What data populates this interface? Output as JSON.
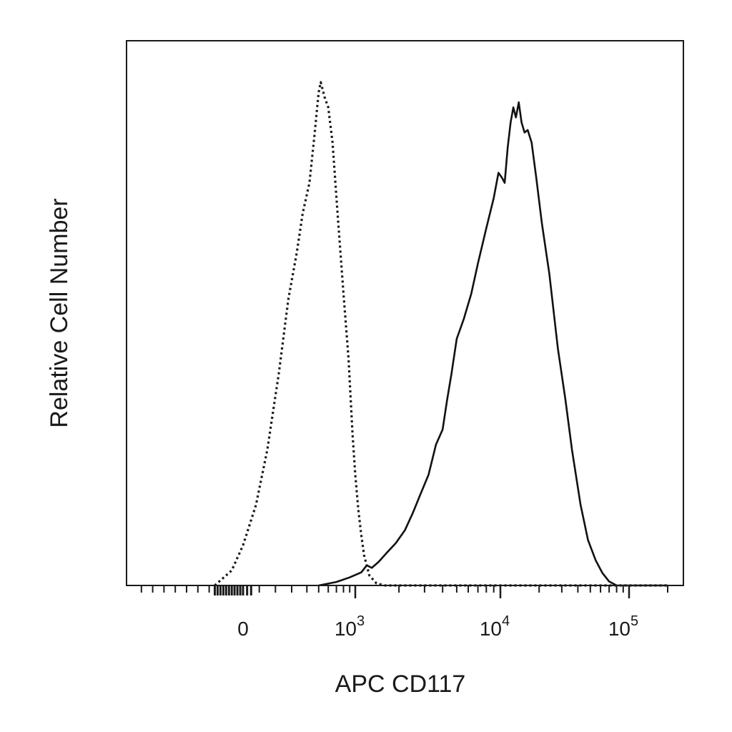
{
  "chart_data": {
    "type": "line",
    "title": "",
    "xlabel": "APC CD117",
    "ylabel": "Relative Cell Number",
    "x_scale": "biexponential",
    "xlim": [
      -1000,
      200000
    ],
    "ylim": [
      0,
      100
    ],
    "x_tick_labels": [
      {
        "base": "0",
        "exp": "",
        "value": 0
      },
      {
        "base": "10",
        "exp": "3",
        "value": 1000
      },
      {
        "base": "10",
        "exp": "4",
        "value": 10000
      },
      {
        "base": "10",
        "exp": "5",
        "value": 100000
      }
    ],
    "grid": false,
    "legend": "none",
    "series": [
      {
        "style": "dotted",
        "color": "#1a1a1a",
        "points": [
          [
            -250,
            0
          ],
          [
            -100,
            3
          ],
          [
            0,
            8
          ],
          [
            80,
            16
          ],
          [
            150,
            27
          ],
          [
            220,
            42
          ],
          [
            280,
            57
          ],
          [
            330,
            66
          ],
          [
            370,
            74
          ],
          [
            420,
            80
          ],
          [
            460,
            89
          ],
          [
            500,
            98
          ],
          [
            520,
            100
          ],
          [
            560,
            97
          ],
          [
            600,
            95
          ],
          [
            650,
            88
          ],
          [
            720,
            73
          ],
          [
            800,
            58
          ],
          [
            880,
            45
          ],
          [
            950,
            30
          ],
          [
            1000,
            22
          ],
          [
            1050,
            15
          ],
          [
            1100,
            10
          ],
          [
            1150,
            6
          ],
          [
            1250,
            2
          ],
          [
            1400,
            0.4
          ],
          [
            1600,
            0
          ],
          [
            200000,
            0
          ]
        ]
      },
      {
        "style": "solid",
        "color": "#111111",
        "points": [
          [
            500,
            0
          ],
          [
            700,
            0.7
          ],
          [
            900,
            1.6
          ],
          [
            1100,
            2.6
          ],
          [
            1200,
            4
          ],
          [
            1300,
            3.5
          ],
          [
            1450,
            4.7
          ],
          [
            1650,
            6.5
          ],
          [
            1900,
            8.4
          ],
          [
            2200,
            11
          ],
          [
            2500,
            14.5
          ],
          [
            2800,
            18
          ],
          [
            3200,
            22
          ],
          [
            3600,
            28
          ],
          [
            4000,
            31
          ],
          [
            4300,
            37
          ],
          [
            4600,
            42
          ],
          [
            5000,
            49
          ],
          [
            5600,
            53
          ],
          [
            6300,
            58
          ],
          [
            7000,
            64
          ],
          [
            8000,
            71
          ],
          [
            9000,
            77
          ],
          [
            9700,
            82
          ],
          [
            10300,
            81
          ],
          [
            10800,
            80
          ],
          [
            11400,
            87
          ],
          [
            12000,
            92
          ],
          [
            12600,
            95
          ],
          [
            13200,
            93
          ],
          [
            13900,
            96
          ],
          [
            14600,
            92
          ],
          [
            15400,
            90
          ],
          [
            16300,
            90.5
          ],
          [
            17500,
            88
          ],
          [
            19000,
            81
          ],
          [
            21000,
            72
          ],
          [
            24000,
            62
          ],
          [
            28000,
            47
          ],
          [
            32000,
            37
          ],
          [
            36000,
            27
          ],
          [
            42000,
            16
          ],
          [
            48000,
            9
          ],
          [
            55000,
            5
          ],
          [
            62000,
            2.5
          ],
          [
            70000,
            0.8
          ],
          [
            80000,
            0
          ],
          [
            200000,
            0
          ]
        ]
      }
    ]
  }
}
